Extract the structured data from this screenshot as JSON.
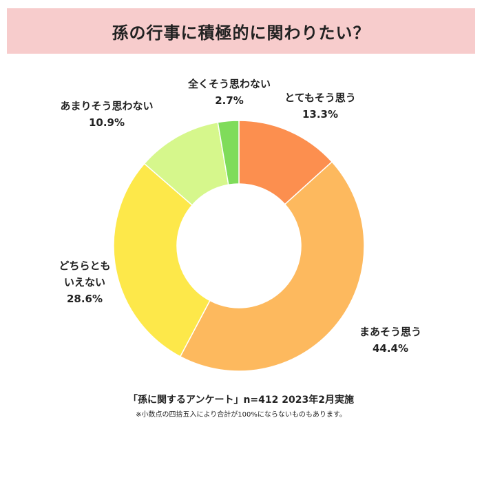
{
  "title": "孫の行事に積極的に関わりたい？",
  "colors": {
    "title_bg": "#f7cccc",
    "slices": [
      "#fc8f4f",
      "#fdb95e",
      "#fde84a",
      "#d6f78c",
      "#7fdc5a"
    ]
  },
  "chart_data": {
    "type": "pie",
    "variant": "donut",
    "start": "12 o'clock",
    "direction": "clockwise",
    "slices": [
      {
        "label": "とてもそう思う",
        "value": 13.3,
        "pct_text": "13.3%"
      },
      {
        "label": "まあそう思う",
        "value": 44.4,
        "pct_text": "44.4%"
      },
      {
        "label": "どちらとも\nいえない",
        "value": 28.6,
        "pct_text": "28.6%"
      },
      {
        "label": "あまりそう思わない",
        "value": 10.9,
        "pct_text": "10.9%"
      },
      {
        "label": "全くそう思わない",
        "value": 2.7,
        "pct_text": "2.7%"
      }
    ]
  },
  "footer": {
    "source": "「孫に関するアンケート」n=412 2023年2月実施",
    "note": "※小数点の四捨五入により合計が100%にならないものもあります。"
  }
}
